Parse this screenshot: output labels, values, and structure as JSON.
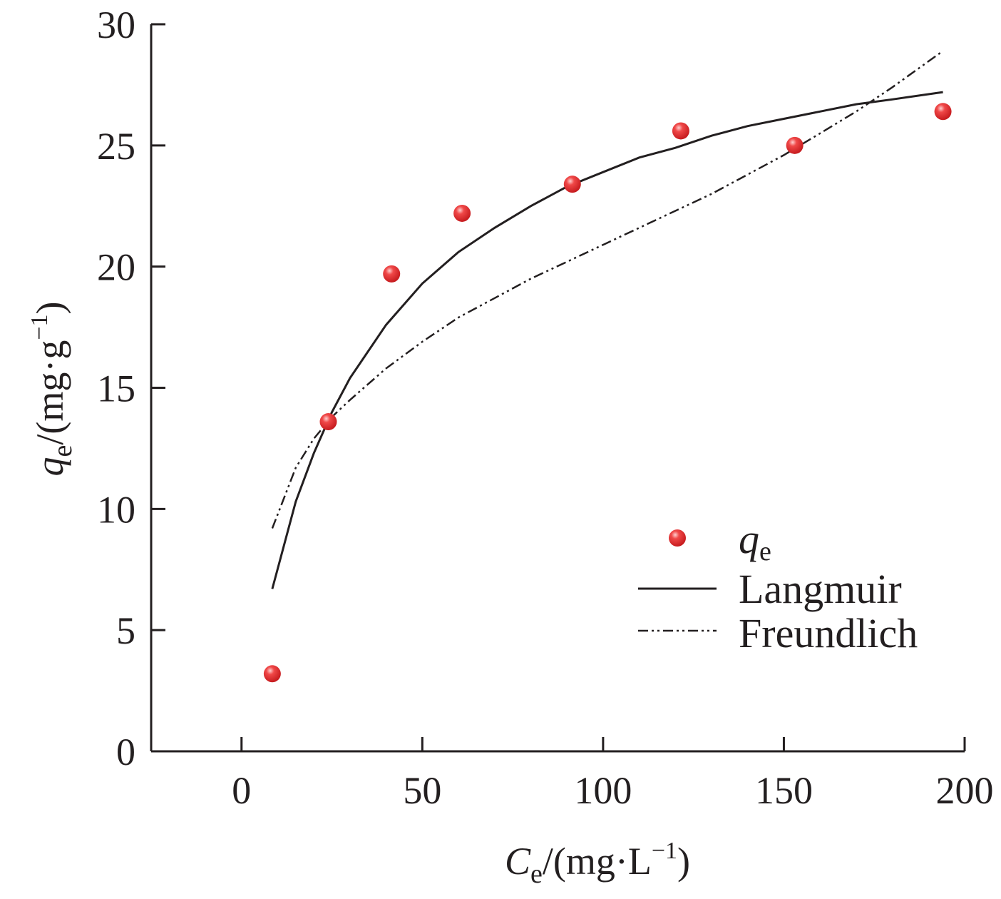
{
  "chart_data": {
    "type": "scatter",
    "xlabel": {
      "symbol": "C",
      "subscript": "e",
      "unit_prefix": "/(mg·L",
      "unit_sup": "−1",
      "unit_suffix": ")"
    },
    "ylabel": {
      "symbol": "q",
      "subscript": "e",
      "unit_prefix": "/(mg·g",
      "unit_sup": "−1",
      "unit_suffix": ")"
    },
    "xlim": [
      -25,
      200
    ],
    "ylim": [
      0,
      30
    ],
    "xticks": [
      0,
      50,
      100,
      150,
      200
    ],
    "yticks": [
      0,
      5,
      10,
      15,
      20,
      25,
      30
    ],
    "grid": false,
    "legend_position": "bottom-right",
    "series": [
      {
        "name": "q",
        "name_subscript": "e",
        "kind": "points",
        "color": "#e8262d",
        "x": [
          8.5,
          24,
          41.5,
          61,
          91.5,
          121.5,
          153,
          194
        ],
        "y": [
          3.2,
          13.6,
          19.7,
          22.2,
          23.4,
          25.6,
          25.0,
          26.4
        ]
      },
      {
        "name": "Langmuir",
        "kind": "line",
        "style": "solid",
        "color": "#231f20",
        "x": [
          8.5,
          15,
          20,
          25,
          30,
          40,
          50,
          60,
          70,
          80,
          90,
          100,
          110,
          120,
          130,
          140,
          150,
          160,
          170,
          180,
          194
        ],
        "y": [
          6.7,
          10.3,
          12.3,
          14.0,
          15.4,
          17.6,
          19.3,
          20.6,
          21.6,
          22.5,
          23.3,
          23.9,
          24.5,
          24.9,
          25.4,
          25.8,
          26.1,
          26.4,
          26.7,
          26.9,
          27.2
        ]
      },
      {
        "name": "Freundlich",
        "kind": "line",
        "style": "dash-dot-dot",
        "color": "#231f20",
        "x": [
          8.5,
          15,
          20,
          25,
          30,
          40,
          50,
          60,
          70,
          80,
          90,
          100,
          110,
          120,
          130,
          140,
          150,
          160,
          170,
          180,
          194
        ],
        "y": [
          9.2,
          11.7,
          12.9,
          13.8,
          14.5,
          15.8,
          16.9,
          17.9,
          18.7,
          19.5,
          20.2,
          20.9,
          21.6,
          22.3,
          23.0,
          23.8,
          24.6,
          25.5,
          26.4,
          27.4,
          28.9
        ]
      }
    ]
  }
}
